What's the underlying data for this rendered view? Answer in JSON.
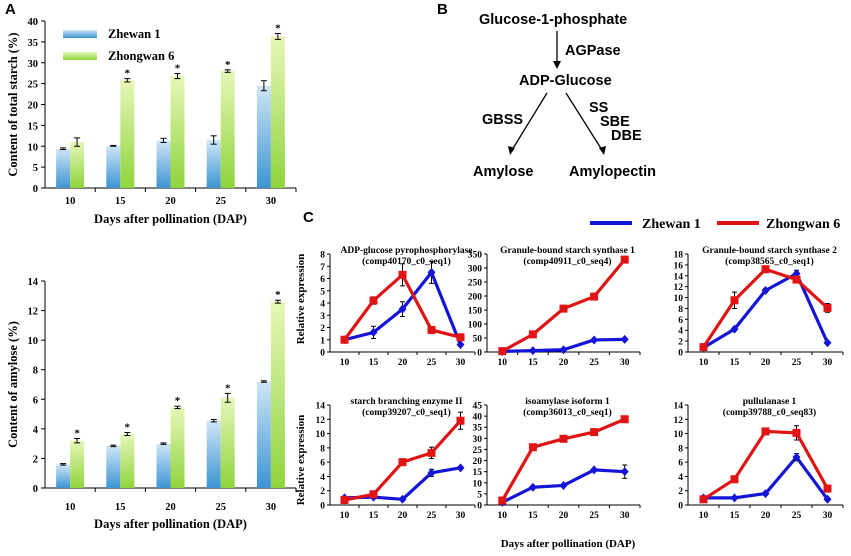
{
  "panels": {
    "a": "A",
    "b": "B",
    "c": "C"
  },
  "colors": {
    "zhewan_bar_top": "#cfe6f7",
    "zhewan_bar_bottom": "#3d94d3",
    "zhongwan_bar_top": "#e6f7b8",
    "zhongwan_bar_bottom": "#8fd43c",
    "zhewan_line": "#1414d8",
    "zhongwan_line": "#e01414"
  },
  "legend_a": {
    "series1": "Zhewan 1",
    "series2": "Zhongwan 6"
  },
  "legend_c": {
    "series1": "Zhewan 1",
    "series2": "Zhongwan 6"
  },
  "pathway": {
    "g1p": "Glucose-1-phosphate",
    "agpase": "AGPase",
    "adpg": "ADP-Glucose",
    "gbss": "GBSS",
    "ss": "SS",
    "sbe": "SBE",
    "dbe": "DBE",
    "amylose": "Amylose",
    "amylopectin": "Amylopectin"
  },
  "c_axis": {
    "ylabel_top": "Relative expression",
    "ylabel_bottom": "Relative expression",
    "xlabel": "Days after pollination (DAP)"
  },
  "chart_data": [
    {
      "id": "starch",
      "type": "bar",
      "ylabel": "Content of total starch (%)",
      "xlabel": "Days after pollination (DAP)",
      "categories": [
        "10",
        "15",
        "20",
        "25",
        "30"
      ],
      "ylim": [
        0,
        40
      ],
      "yticks": [
        "0",
        "5",
        "10",
        "15",
        "20",
        "25",
        "30",
        "35",
        "40"
      ],
      "series": [
        {
          "name": "Zhewan 1",
          "values": [
            9.4,
            10.1,
            11.4,
            11.5,
            24.5
          ],
          "errors": [
            0.2,
            0.1,
            0.5,
            1.0,
            1.2
          ],
          "star": [
            "",
            "",
            "",
            "",
            ""
          ]
        },
        {
          "name": "Zhongwan 6",
          "values": [
            11.0,
            25.8,
            26.8,
            28.0,
            36.3
          ],
          "errors": [
            1.0,
            0.4,
            0.6,
            0.3,
            0.7
          ],
          "star": [
            "",
            "*",
            "*",
            "*",
            "*"
          ]
        }
      ]
    },
    {
      "id": "amylose",
      "type": "bar",
      "ylabel": "Content of amylose (%)",
      "xlabel": "Days after pollination (DAP)",
      "categories": [
        "10",
        "15",
        "20",
        "25",
        "30"
      ],
      "ylim": [
        0,
        14
      ],
      "yticks": [
        "0",
        "2",
        "4",
        "6",
        "8",
        "10",
        "12",
        "14"
      ],
      "series": [
        {
          "name": "Zhewan 1",
          "values": [
            1.6,
            2.85,
            3.0,
            4.55,
            7.2
          ],
          "errors": [
            0.05,
            0.05,
            0.05,
            0.08,
            0.05
          ],
          "star": [
            "",
            "",
            "",
            "",
            ""
          ]
        },
        {
          "name": "Zhongwan 6",
          "values": [
            3.2,
            3.65,
            5.45,
            6.1,
            12.6
          ],
          "errors": [
            0.15,
            0.1,
            0.08,
            0.3,
            0.1
          ],
          "star": [
            "*",
            "*",
            "*",
            "*",
            "*"
          ]
        }
      ]
    },
    {
      "id": "agpase",
      "type": "line",
      "title": "ADP-glucose pyrophosphorylase",
      "subtitle": "(comp40170_c0_seq1)",
      "x": [
        "10",
        "15",
        "20",
        "25",
        "30"
      ],
      "ylim": [
        0,
        8
      ],
      "yticks": [
        "0",
        "1",
        "2",
        "3",
        "4",
        "5",
        "6",
        "7",
        "8"
      ],
      "series": [
        {
          "name": "Zhewan 1",
          "values": [
            1.0,
            1.6,
            3.5,
            6.5,
            0.6
          ],
          "errors": [
            0.1,
            0.5,
            0.6,
            0.9,
            0.1
          ]
        },
        {
          "name": "Zhongwan 6",
          "values": [
            1.0,
            4.2,
            6.3,
            1.8,
            1.2
          ],
          "errors": [
            0.1,
            0.3,
            0.9,
            0.2,
            0.1
          ]
        }
      ]
    },
    {
      "id": "gbss1",
      "type": "line",
      "title": "Granule-bound starch synthase 1",
      "subtitle": "(comp40911_c0_seq4)",
      "x": [
        "10",
        "15",
        "20",
        "25",
        "30"
      ],
      "ylim": [
        0,
        350
      ],
      "yticks": [
        "0",
        "50",
        "100",
        "150",
        "200",
        "250",
        "300",
        "350"
      ],
      "series": [
        {
          "name": "Zhewan 1",
          "values": [
            2,
            5,
            8,
            43,
            45
          ],
          "errors": [
            1,
            1,
            1,
            3,
            3
          ]
        },
        {
          "name": "Zhongwan 6",
          "values": [
            3,
            63,
            155,
            198,
            330
          ],
          "errors": [
            1,
            3,
            4,
            5,
            6
          ]
        }
      ]
    },
    {
      "id": "gbss2",
      "type": "line",
      "title": "Granule-bound starch synthase 2",
      "subtitle": "(comp38565_c0_seq1)",
      "x": [
        "10",
        "15",
        "20",
        "25",
        "30"
      ],
      "ylim": [
        0,
        18
      ],
      "yticks": [
        "0",
        "2",
        "4",
        "6",
        "8",
        "10",
        "12",
        "14",
        "16",
        "18"
      ],
      "series": [
        {
          "name": "Zhewan 1",
          "values": [
            0.8,
            4.2,
            11.3,
            14.4,
            1.7
          ],
          "errors": [
            0.1,
            0.2,
            0.3,
            0.6,
            0.1
          ]
        },
        {
          "name": "Zhongwan 6",
          "values": [
            0.9,
            9.5,
            15.2,
            13.3,
            8.1
          ],
          "errors": [
            0.1,
            1.5,
            0.6,
            0.5,
            0.8
          ]
        }
      ]
    },
    {
      "id": "sbe2",
      "type": "line",
      "title": "starch branching enzyme II",
      "subtitle": "(comp39207_c0_seq1)",
      "x": [
        "10",
        "15",
        "20",
        "25",
        "30"
      ],
      "ylim": [
        0,
        14
      ],
      "yticks": [
        "0",
        "2",
        "4",
        "6",
        "8",
        "10",
        "12",
        "14"
      ],
      "series": [
        {
          "name": "Zhewan 1",
          "values": [
            1.0,
            1.1,
            0.8,
            4.5,
            5.2
          ],
          "errors": [
            0.1,
            0.1,
            0.1,
            0.5,
            0.2
          ]
        },
        {
          "name": "Zhongwan 6",
          "values": [
            0.7,
            1.5,
            6.0,
            7.3,
            11.8
          ],
          "errors": [
            0.1,
            0.2,
            0.3,
            0.8,
            1.2
          ]
        }
      ]
    },
    {
      "id": "isa1",
      "type": "line",
      "title": "isoamylase isoform 1",
      "subtitle": "(comp36013_c0_seq1)",
      "x": [
        "10",
        "15",
        "20",
        "25",
        "30"
      ],
      "ylim": [
        0,
        45
      ],
      "yticks": [
        "0",
        "5",
        "10",
        "15",
        "20",
        "25",
        "30",
        "35",
        "40",
        "45"
      ],
      "series": [
        {
          "name": "Zhewan 1",
          "values": [
            1.2,
            8.0,
            8.8,
            15.8,
            15.0
          ],
          "errors": [
            0.2,
            0.4,
            0.5,
            0.6,
            3.0
          ]
        },
        {
          "name": "Zhongwan 6",
          "values": [
            2.0,
            26.0,
            29.8,
            32.8,
            38.6
          ],
          "errors": [
            0.2,
            0.8,
            0.9,
            1.2,
            0.7
          ]
        }
      ]
    },
    {
      "id": "pul1",
      "type": "line",
      "title": "pullulanase 1",
      "subtitle": "(comp39788_c0_seq83)",
      "x": [
        "10",
        "15",
        "20",
        "25",
        "30"
      ],
      "ylim": [
        0,
        14
      ],
      "yticks": [
        "0",
        "2",
        "4",
        "6",
        "8",
        "10",
        "12",
        "14"
      ],
      "series": [
        {
          "name": "Zhewan 1",
          "values": [
            1.0,
            1.0,
            1.6,
            6.7,
            0.8
          ],
          "errors": [
            0.1,
            0.1,
            0.1,
            0.5,
            0.1
          ]
        },
        {
          "name": "Zhongwan 6",
          "values": [
            0.8,
            3.6,
            10.3,
            10.1,
            2.3
          ],
          "errors": [
            0.1,
            0.2,
            0.3,
            1.0,
            0.4
          ]
        }
      ]
    }
  ]
}
